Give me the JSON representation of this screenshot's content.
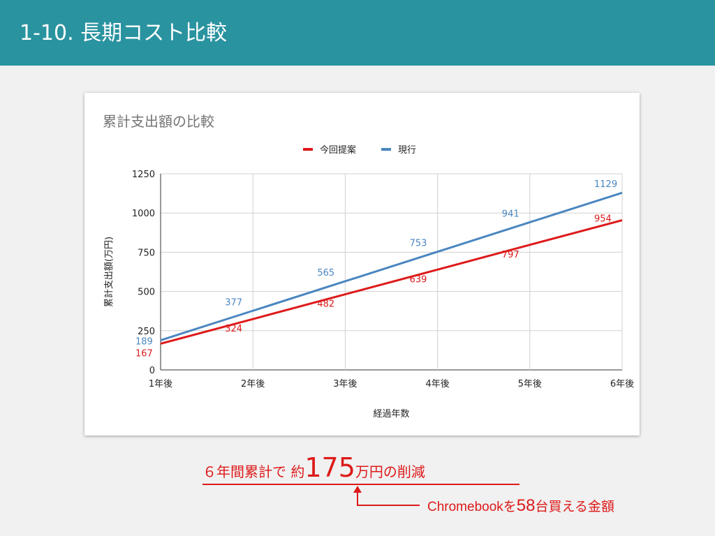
{
  "slide": {
    "title": "1-10. 長期コスト比較"
  },
  "chart_data": {
    "type": "line",
    "title": "累計支出額の比較",
    "xlabel": "経過年数",
    "ylabel": "累計支出額(万円)",
    "categories": [
      "1年後",
      "2年後",
      "3年後",
      "4年後",
      "5年後",
      "6年後"
    ],
    "ylim": [
      0,
      1250
    ],
    "yticks": [
      "0",
      "250",
      "500",
      "750",
      "1000",
      "1250"
    ],
    "grid": true,
    "legend_position": "top",
    "series": [
      {
        "name": "今回提案",
        "color": "#dd1a1a",
        "values": [
          167,
          324,
          482,
          639,
          797,
          954
        ],
        "labels": [
          "167",
          "324",
          "482",
          "639",
          "797",
          "954"
        ]
      },
      {
        "name": "現行",
        "color": "#4a86c0",
        "values": [
          189,
          377,
          565,
          753,
          941,
          1129
        ],
        "labels": [
          "189",
          "377",
          "565",
          "753",
          "941",
          "1129"
        ]
      }
    ]
  },
  "summary": {
    "prefix": "６年間累計で 約",
    "amount": "175",
    "suffix": "万円の削減",
    "note_prefix": "Chromebookを",
    "note_count": "58",
    "note_suffix": "台買える金額",
    "color": "#dd1a1a"
  }
}
